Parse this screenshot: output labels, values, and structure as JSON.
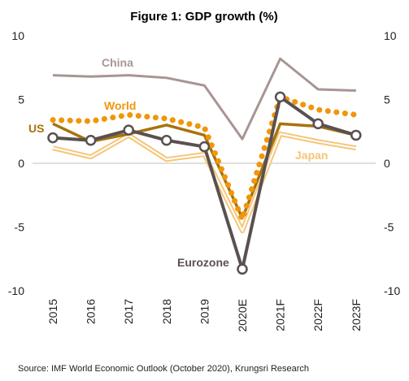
{
  "chart_data": {
    "type": "line",
    "title": "Figure 1: GDP growth (%)",
    "categories": [
      "2015",
      "2016",
      "2017",
      "2018",
      "2019",
      "2020E",
      "2021F",
      "2022F",
      "2023F"
    ],
    "ylim": [
      -10,
      10
    ],
    "yticks": [
      "10",
      "5",
      "0",
      "-5",
      "-10"
    ],
    "yticks_values": [
      10,
      5,
      0,
      -5,
      -10
    ],
    "grid": false,
    "series": [
      {
        "name": "China",
        "values": [
          6.9,
          6.8,
          6.9,
          6.7,
          6.1,
          1.9,
          8.2,
          5.8,
          5.7
        ],
        "color": "#a89593",
        "style": "solid"
      },
      {
        "name": "World",
        "values": [
          3.4,
          3.3,
          3.8,
          3.5,
          2.8,
          -4.4,
          5.2,
          4.2,
          3.8
        ],
        "color": "#f0960a",
        "style": "dotted"
      },
      {
        "name": "US",
        "values": [
          3.1,
          1.7,
          2.3,
          3.0,
          2.2,
          -4.3,
          3.1,
          2.9,
          2.2
        ],
        "color": "#a8720c",
        "style": "solid"
      },
      {
        "name": "Japan",
        "values": [
          1.2,
          0.5,
          2.2,
          0.3,
          0.7,
          -5.3,
          2.3,
          1.7,
          1.2
        ],
        "color": "#f5c678",
        "style": "double"
      },
      {
        "name": "Eurozone",
        "values": [
          2.0,
          1.8,
          2.6,
          1.8,
          1.3,
          -8.3,
          5.2,
          3.1,
          2.2
        ],
        "color": "#5a5050",
        "style": "markers"
      }
    ]
  },
  "source": "Source: IMF World Economic Outlook (October 2020), Krungsri Research"
}
